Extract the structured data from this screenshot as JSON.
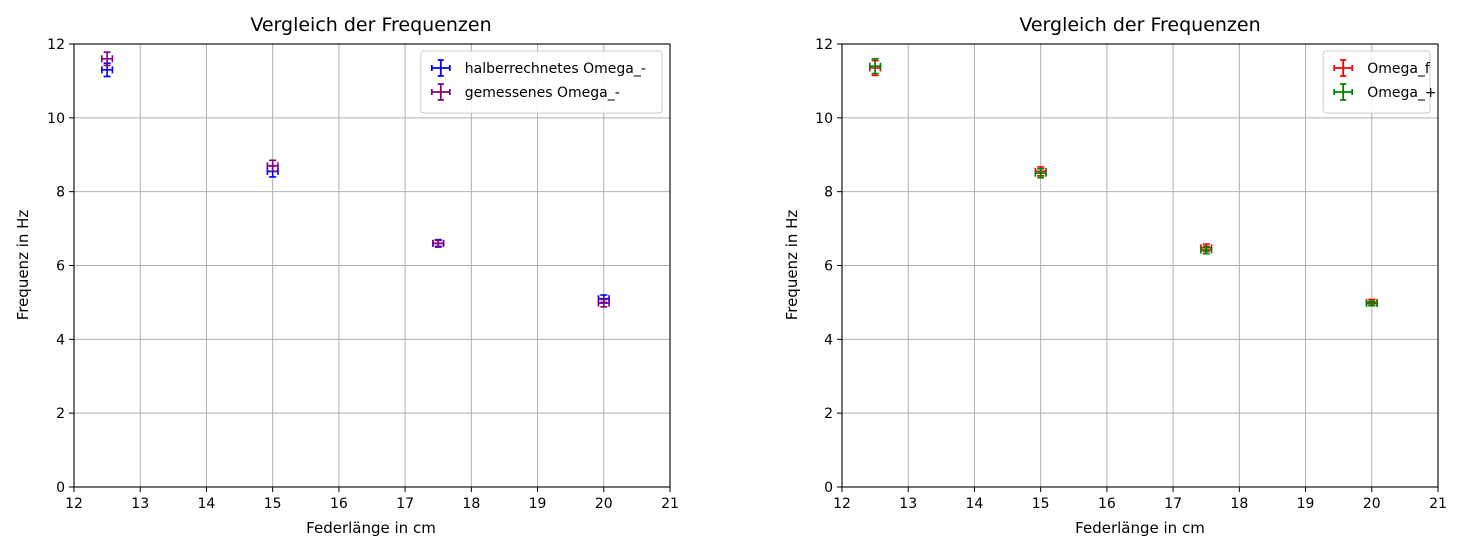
{
  "chart_data": [
    {
      "type": "scatter",
      "title": "Vergleich der Frequenzen",
      "xlabel": "Federlänge in cm",
      "ylabel": "Frequenz in Hz",
      "xlim": [
        12,
        21
      ],
      "ylim": [
        0,
        12
      ],
      "xticks": [
        "12",
        "13",
        "14",
        "15",
        "16",
        "17",
        "18",
        "19",
        "20",
        "21"
      ],
      "yticks": [
        "0",
        "2",
        "4",
        "6",
        "8",
        "10",
        "12"
      ],
      "grid": true,
      "legend_position": "top-right",
      "series": [
        {
          "name": "halberrechnetes Omega_-",
          "color": "#0000ff",
          "x": [
            12.5,
            15,
            17.5,
            20
          ],
          "y": [
            11.3,
            8.55,
            6.6,
            5.1
          ],
          "yerr": [
            0.18,
            0.15,
            0.1,
            0.1
          ],
          "xerr": [
            0.08,
            0.08,
            0.08,
            0.08
          ]
        },
        {
          "name": "gemessenes Omega_-",
          "color": "#800080",
          "x": [
            12.5,
            15,
            17.5,
            20
          ],
          "y": [
            11.6,
            8.7,
            6.6,
            4.98
          ],
          "yerr": [
            0.18,
            0.15,
            0.08,
            0.1
          ],
          "xerr": [
            0.08,
            0.08,
            0.08,
            0.08
          ]
        }
      ]
    },
    {
      "type": "scatter",
      "title": "Vergleich der Frequenzen",
      "xlabel": "Federlänge in cm",
      "ylabel": "Frequenz in Hz",
      "xlim": [
        12,
        21
      ],
      "ylim": [
        0,
        12
      ],
      "xticks": [
        "12",
        "13",
        "14",
        "15",
        "16",
        "17",
        "18",
        "19",
        "20",
        "21"
      ],
      "yticks": [
        "0",
        "2",
        "4",
        "6",
        "8",
        "10",
        "12"
      ],
      "grid": true,
      "legend_position": "top-right",
      "series": [
        {
          "name": "Omega_f",
          "color": "#ff0000",
          "x": [
            12.5,
            15,
            17.5,
            20
          ],
          "y": [
            11.35,
            8.55,
            6.48,
            5.0
          ],
          "yerr": [
            0.2,
            0.12,
            0.1,
            0.08
          ],
          "xerr": [
            0.08,
            0.08,
            0.08,
            0.08
          ]
        },
        {
          "name": "Omega_+",
          "color": "#008000",
          "x": [
            12.5,
            15,
            17.5,
            20
          ],
          "y": [
            11.4,
            8.5,
            6.42,
            4.97
          ],
          "yerr": [
            0.2,
            0.12,
            0.1,
            0.06
          ],
          "xerr": [
            0.08,
            0.08,
            0.08,
            0.08
          ]
        }
      ]
    }
  ]
}
